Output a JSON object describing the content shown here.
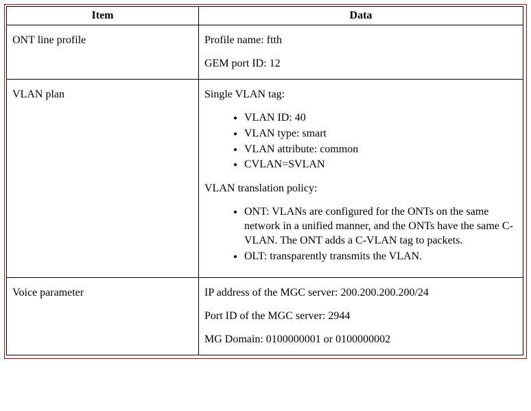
{
  "table": {
    "headers": {
      "item": "Item",
      "data": "Data"
    },
    "border_color": "#000000",
    "frame_color": "#c00000",
    "font_family": "Times New Roman",
    "font_size_pt": 12,
    "rows": {
      "ont_line_profile": {
        "item": "ONT line profile",
        "line1": "Profile name: ftth",
        "line2": "GEM port ID: 12"
      },
      "vlan_plan": {
        "item": "VLAN plan",
        "single_tag_label": "Single VLAN tag:",
        "single_tag_items": {
          "b0": "VLAN ID: 40",
          "b1": "VLAN type: smart",
          "b2": "VLAN attribute: common",
          "b3": "CVLAN=SVLAN"
        },
        "policy_label": "VLAN translation policy:",
        "policy_items": {
          "p0": "ONT: VLANs are configured for the ONTs on the same network in a unified manner, and the ONTs have the same C-VLAN. The ONT adds a C-VLAN tag to packets.",
          "p1": "OLT: transparently transmits the VLAN."
        }
      },
      "voice_parameter": {
        "item": "Voice parameter",
        "line1": "IP address of the MGC server: 200.200.200.200/24",
        "line2": "Port ID of the MGC server: 2944",
        "line3": "MG Domain: 0100000001 or 0100000002"
      }
    }
  }
}
